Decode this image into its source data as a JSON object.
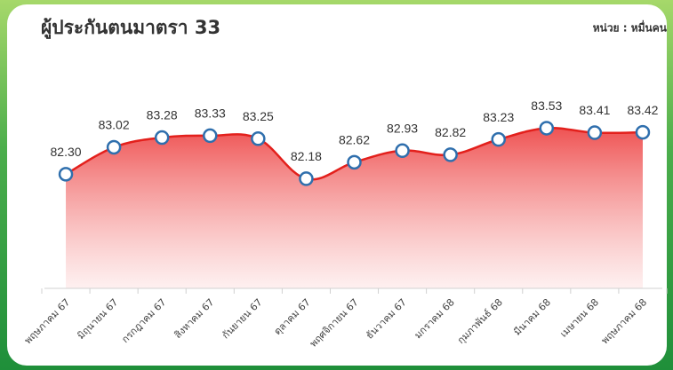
{
  "chart_data": {
    "type": "area",
    "title": "ผู้ประกันตนมาตรา 33",
    "subtitle": "หน่วย : หมื่นคน",
    "categories": [
      "พฤษภาคม 67",
      "มิถุนายน 67",
      "กรกฎาคม 67",
      "สิงหาคม 67",
      "กันยายน 67",
      "ตุลาคม 67",
      "พฤศจิกายน 67",
      "ธันวาคม 67",
      "มกราคม 68",
      "กุมภาพันธ์ 68",
      "มีนาคม 68",
      "เมษายน 68",
      "พฤษภาคม 68"
    ],
    "values": [
      82.3,
      83.02,
      83.28,
      83.33,
      83.25,
      82.18,
      82.62,
      82.93,
      82.82,
      83.23,
      83.53,
      83.41,
      83.42
    ],
    "value_labels": [
      "82.30",
      "83.02",
      "83.28",
      "83.33",
      "83.25",
      "82.18",
      "82.62",
      "82.93",
      "82.82",
      "83.23",
      "83.53",
      "83.41",
      "83.42"
    ],
    "color": "#e3201c",
    "marker_color": "#2f6fad",
    "ylim": [
      79.25,
      84.3
    ],
    "grid": false
  }
}
